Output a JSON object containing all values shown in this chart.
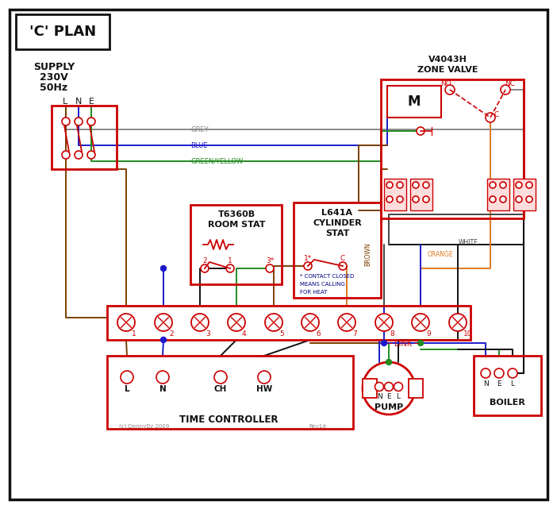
{
  "bg": "#ffffff",
  "R": "#cc0000",
  "B": "#1a1acc",
  "BR": "#7B3F00",
  "G": "#228B22",
  "GR": "#888888",
  "OR": "#E07820",
  "BK": "#111111",
  "DB": "#000080",
  "WH": "#444444",
  "title": "'C' PLAN",
  "supply_lines": [
    "SUPPLY",
    "230V",
    "50Hz"
  ],
  "lne": [
    "L",
    "N",
    "E"
  ],
  "tc_label": "TIME CONTROLLER",
  "rs_lines": [
    "T6360B",
    "ROOM STAT"
  ],
  "cs_lines": [
    "L641A",
    "CYLINDER",
    "STAT"
  ],
  "zv_lines": [
    "V4043H",
    "ZONE VALVE"
  ],
  "pump_label": "PUMP",
  "boiler_label": "BOILER",
  "terms": [
    "1",
    "2",
    "3",
    "4",
    "5",
    "6",
    "7",
    "8",
    "9",
    "10"
  ],
  "tc_terms": [
    [
      "L",
      160
    ],
    [
      "N",
      205
    ],
    [
      "CH",
      278
    ],
    [
      "HW",
      333
    ]
  ],
  "note_lines": [
    "* CONTACT CLOSED",
    "MEANS CALLING",
    "FOR HEAT"
  ],
  "link_label": "LINK",
  "wire_labels": [
    "GREY",
    "BLUE",
    "GREEN/YELLOW",
    "BROWN",
    "WHITE",
    "ORANGE"
  ],
  "no_nc_c": [
    "NO",
    "NC",
    "C"
  ],
  "motor": "M",
  "copyright": "(c) DennyDz 2009",
  "rev": "Rev1d"
}
